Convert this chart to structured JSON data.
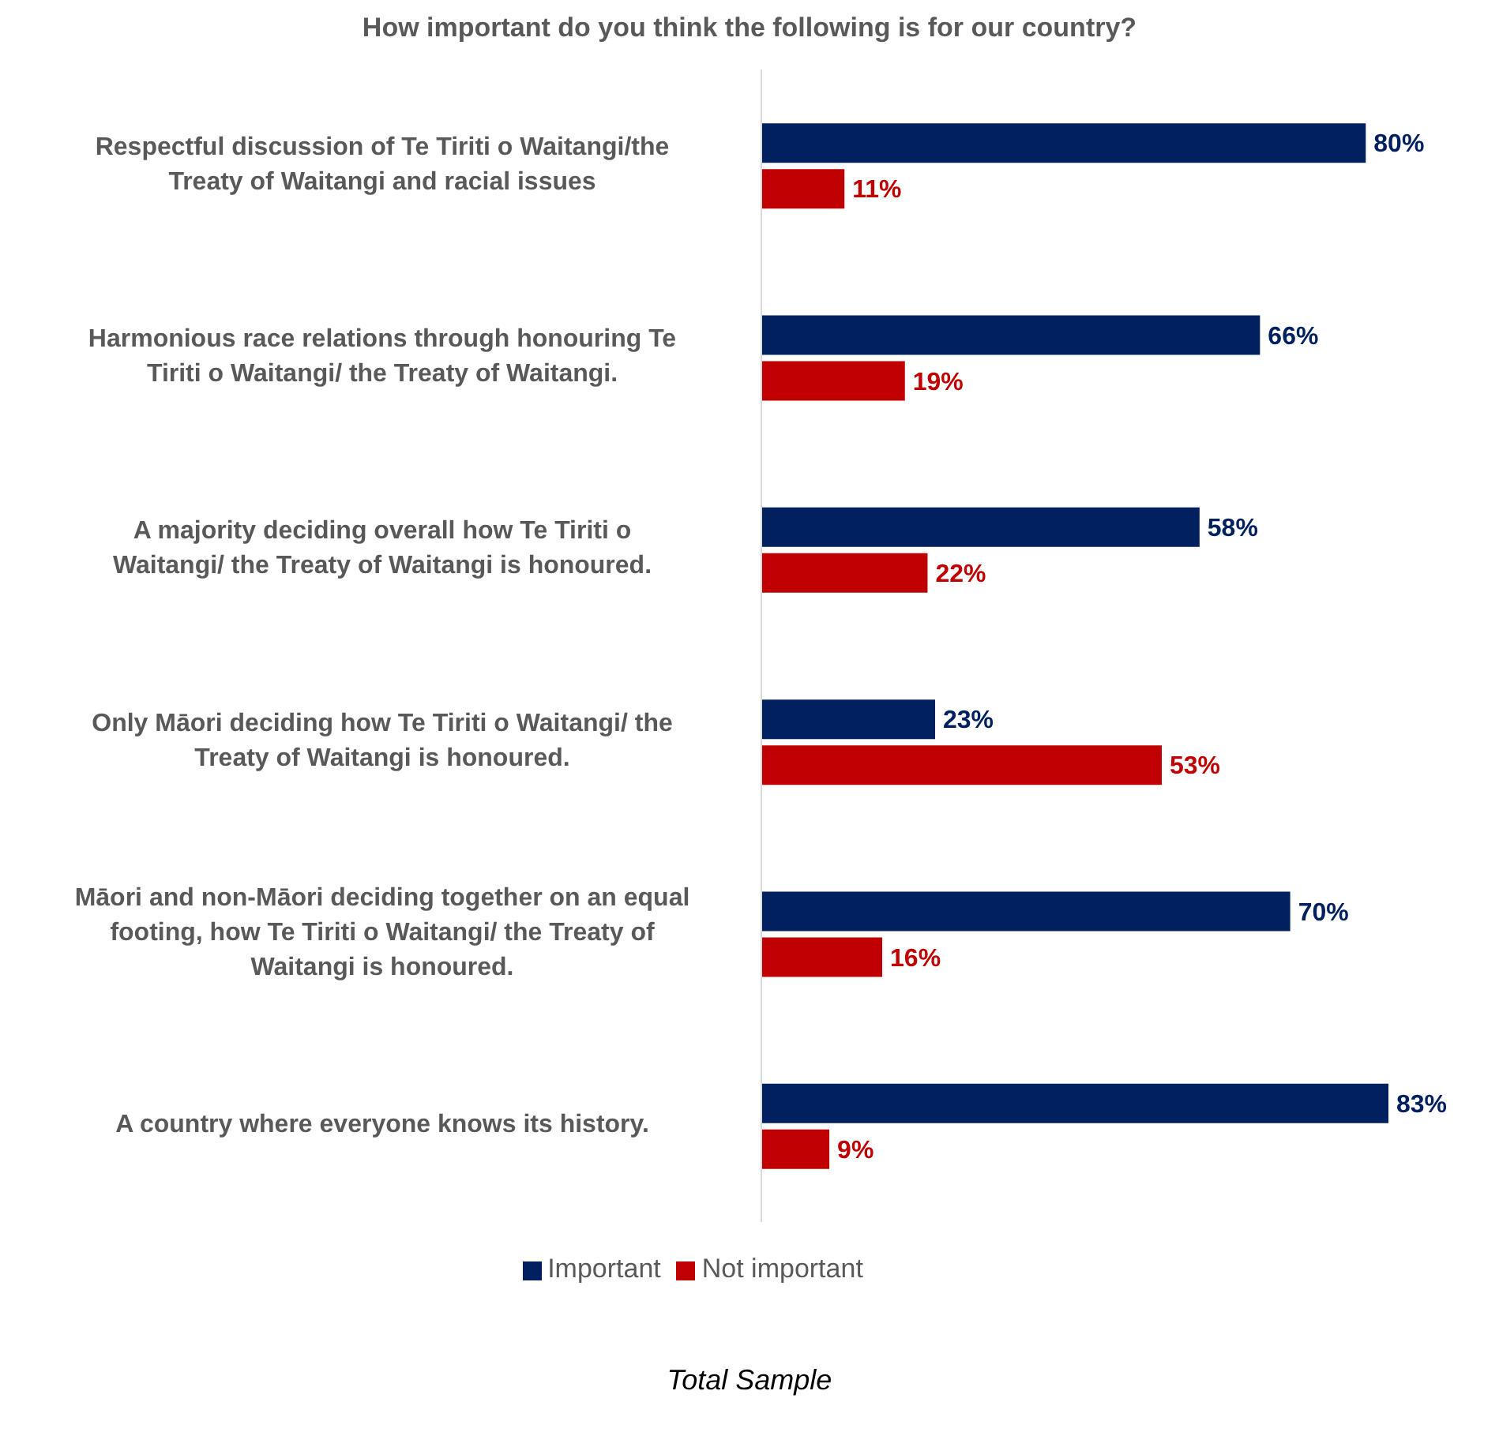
{
  "chart_data": {
    "type": "bar",
    "orientation": "horizontal",
    "title": "How important do you think the following is for our country?",
    "categories": [
      "Respectful discussion of Te Tiriti o Waitangi/the Treaty of Waitangi and racial issues",
      "Harmonious race relations through honouring Te Tiriti o Waitangi/ the Treaty of Waitangi.",
      "A majority deciding overall how Te Tiriti o Waitangi/ the Treaty of Waitangi is honoured.",
      "Only Māori deciding how Te Tiriti o Waitangi/ the Treaty of Waitangi is honoured.",
      "Māori and non-Māori deciding together on an equal footing, how Te Tiriti o Waitangi/ the Treaty of Waitangi is honoured.",
      "A country where everyone knows its history."
    ],
    "series": [
      {
        "name": "Important",
        "color": "#002060",
        "values": [
          80,
          66,
          58,
          23,
          70,
          83
        ],
        "value_labels": [
          "80%",
          "66%",
          "58%",
          "23%",
          "70%",
          "83%"
        ]
      },
      {
        "name": "Not important",
        "color": "#c00000",
        "values": [
          11,
          19,
          22,
          53,
          16,
          9
        ],
        "value_labels": [
          "11%",
          "19%",
          "22%",
          "53%",
          "16%",
          "9%"
        ]
      }
    ],
    "legend": "bottom",
    "annotations": [
      "Total Sample"
    ]
  }
}
